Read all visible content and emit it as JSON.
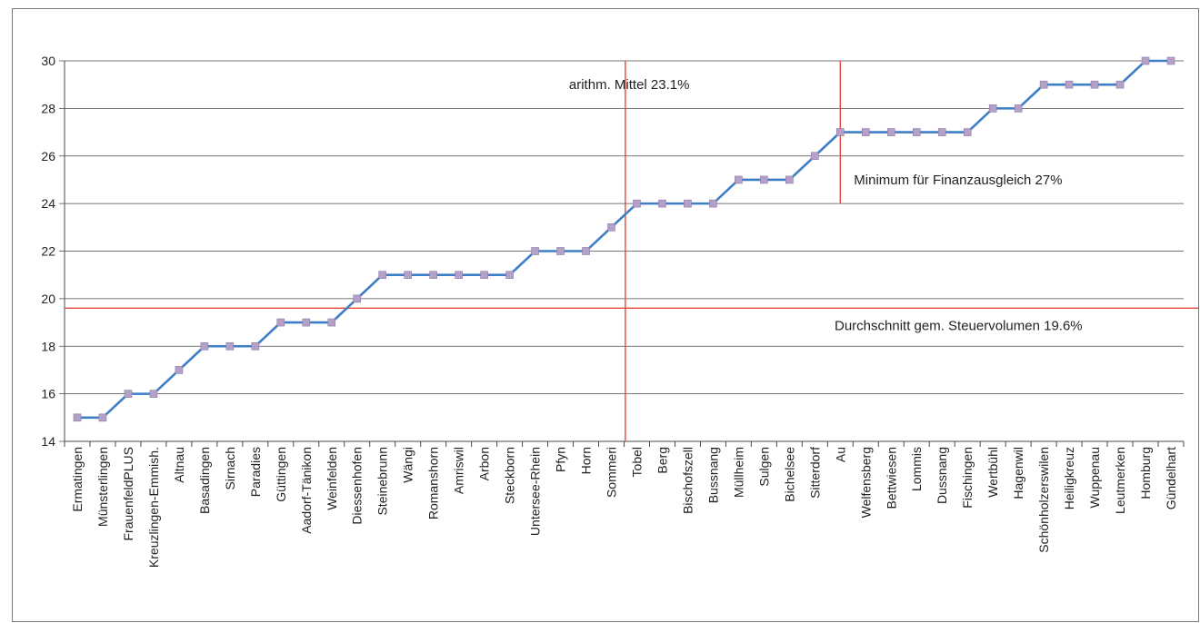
{
  "chart_data": {
    "type": "line",
    "categories": [
      "Ermatingen",
      "Münsterlingen",
      "FrauenfeldPLUS",
      "Kreuzlingen-Emmish.",
      "Altnau",
      "Basadingen",
      "Sirnach",
      "Paradies",
      "Güttingen",
      "Aadorf-Tänikon",
      "Weinfelden",
      "Diessenhofen",
      "Steinebrunn",
      "Wängi",
      "Romanshorn",
      "Amriswil",
      "Arbon",
      "Steckborn",
      "Untersee-Rhein",
      "Pfyn",
      "Horn",
      "Sommeri",
      "Tobel",
      "Berg",
      "Bischofszell",
      "Bussnang",
      "Müllheim",
      "Sulgen",
      "Bichelsee",
      "Sitterdorf",
      "Au",
      "Welfensberg",
      "Bettwiesen",
      "Lommis",
      "Dussnang",
      "Fischingen",
      "Wertbühl",
      "Hagenwil",
      "Schönholzerswilen",
      "Heiligkreuz",
      "Wuppenau",
      "Leutmerken",
      "Homburg",
      "Gündelhart"
    ],
    "series": [
      {
        "values": [
          15,
          15,
          16,
          16,
          17,
          18,
          18,
          18,
          19,
          19,
          19,
          20,
          21,
          21,
          21,
          21,
          21,
          21,
          22,
          22,
          22,
          23,
          24,
          24,
          24,
          24,
          25,
          25,
          25,
          26,
          27,
          27,
          27,
          27,
          27,
          27,
          28,
          28,
          29,
          29,
          29,
          29,
          30,
          30
        ]
      }
    ],
    "ylim": [
      14,
      30
    ],
    "yticks": [
      "14",
      "16",
      "18",
      "20",
      "22",
      "24",
      "26",
      "28",
      "30"
    ],
    "grid": true,
    "line_color": "#3d7fc6",
    "marker_color": "#b5a0c8",
    "reference_color": "#e8453c",
    "annotations": [
      {
        "text": "arithm. Mittel 23.1%",
        "value": 23.1
      },
      {
        "text": "Minimum für Finanzausgleich 27%",
        "value": 27
      },
      {
        "text": "Durchschnitt gem. Steuervolumen 19.6%",
        "value": 19.6
      }
    ]
  }
}
